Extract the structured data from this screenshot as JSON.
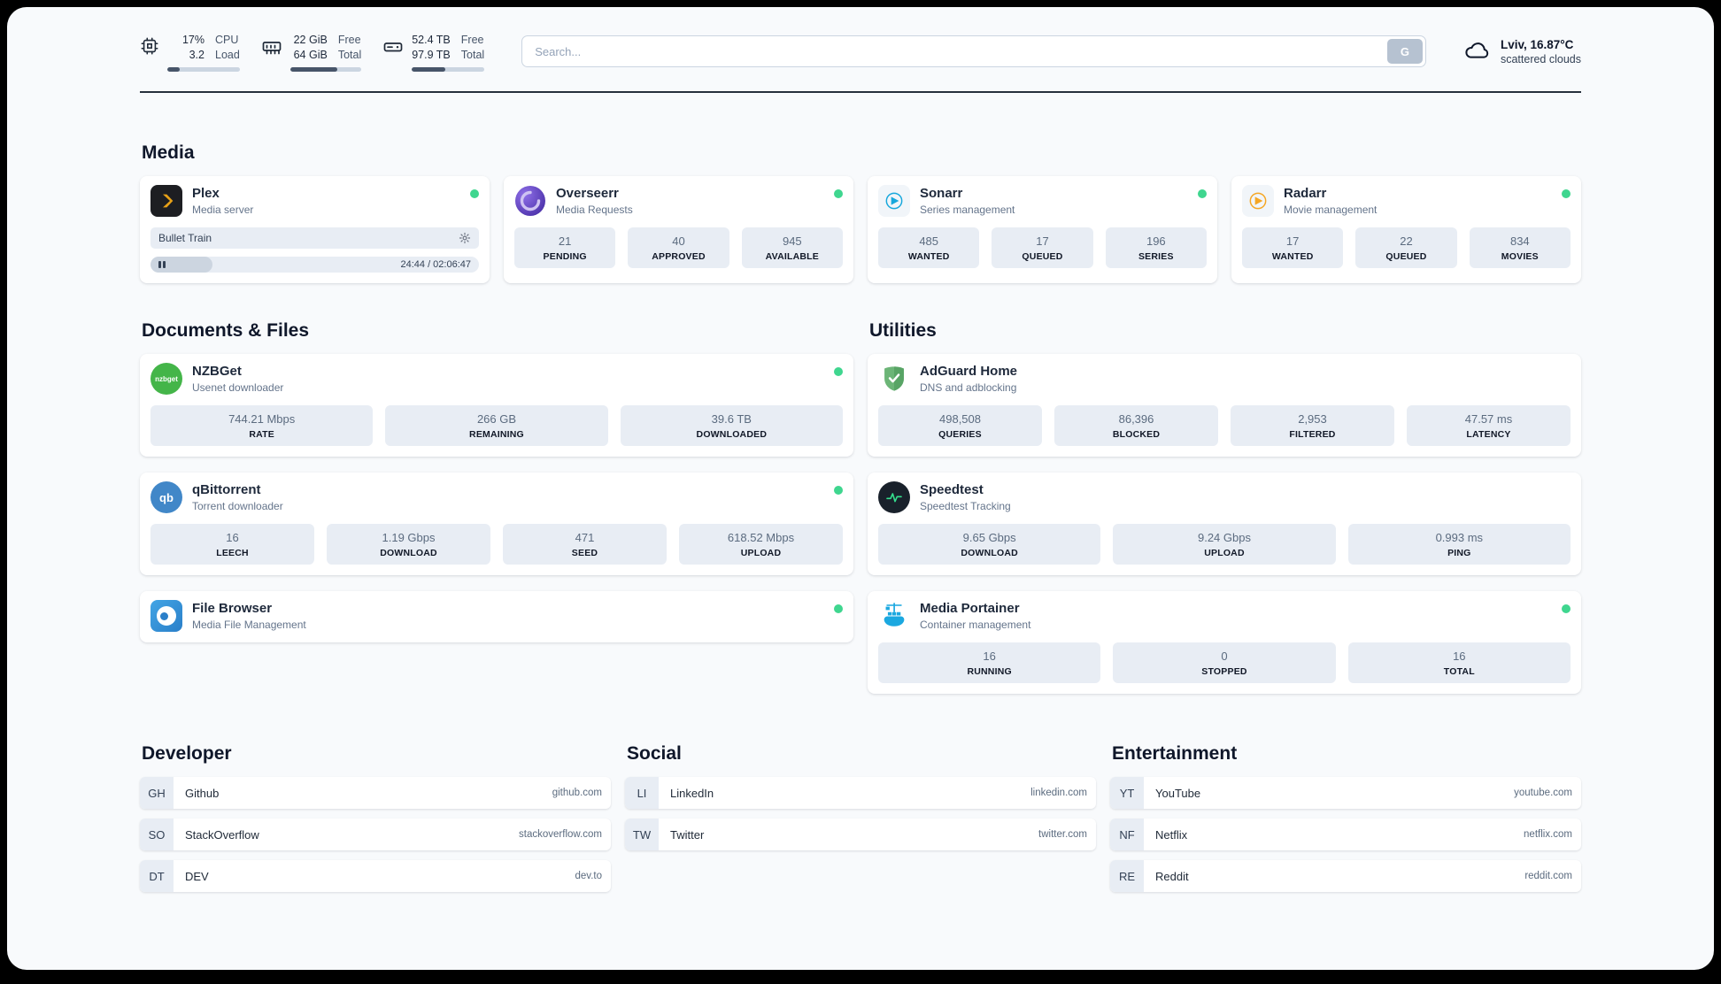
{
  "topbar": {
    "cpu": {
      "value_top": "17%",
      "value_bottom": "3.2",
      "label_top": "CPU",
      "label_bottom": "Load",
      "bar_pct": 17
    },
    "memory": {
      "value_top": "22 GiB",
      "value_bottom": "64 GiB",
      "label_top": "Free",
      "label_bottom": "Total",
      "bar_pct": 66
    },
    "disk": {
      "value_top": "52.4 TB",
      "value_bottom": "97.9 TB",
      "label_top": "Free",
      "label_bottom": "Total",
      "bar_pct": 46
    },
    "search": {
      "placeholder": "Search...",
      "button": "G"
    },
    "weather": {
      "location": "Lviv, 16.87°C",
      "condition": "scattered clouds"
    }
  },
  "media": {
    "title": "Media",
    "plex": {
      "name": "Plex",
      "subtitle": "Media server",
      "now_playing": "Bullet Train",
      "time": "24:44 / 02:06:47",
      "progress_pct": 19
    },
    "overseerr": {
      "name": "Overseerr",
      "subtitle": "Media Requests",
      "stats": [
        {
          "value": "21",
          "label": "PENDING"
        },
        {
          "value": "40",
          "label": "APPROVED"
        },
        {
          "value": "945",
          "label": "AVAILABLE"
        }
      ]
    },
    "sonarr": {
      "name": "Sonarr",
      "subtitle": "Series management",
      "stats": [
        {
          "value": "485",
          "label": "WANTED"
        },
        {
          "value": "17",
          "label": "QUEUED"
        },
        {
          "value": "196",
          "label": "SERIES"
        }
      ]
    },
    "radarr": {
      "name": "Radarr",
      "subtitle": "Movie management",
      "stats": [
        {
          "value": "17",
          "label": "WANTED"
        },
        {
          "value": "22",
          "label": "QUEUED"
        },
        {
          "value": "834",
          "label": "MOVIES"
        }
      ]
    }
  },
  "documents": {
    "title": "Documents & Files",
    "nzbget": {
      "name": "NZBGet",
      "subtitle": "Usenet downloader",
      "icon_text": "nzbget",
      "stats": [
        {
          "value": "744.21 Mbps",
          "label": "RATE"
        },
        {
          "value": "266 GB",
          "label": "REMAINING"
        },
        {
          "value": "39.6 TB",
          "label": "DOWNLOADED"
        }
      ]
    },
    "qbittorrent": {
      "name": "qBittorrent",
      "subtitle": "Torrent downloader",
      "icon_text": "qb",
      "stats": [
        {
          "value": "16",
          "label": "LEECH"
        },
        {
          "value": "1.19 Gbps",
          "label": "DOWNLOAD"
        },
        {
          "value": "471",
          "label": "SEED"
        },
        {
          "value": "618.52 Mbps",
          "label": "UPLOAD"
        }
      ]
    },
    "filebrowser": {
      "name": "File Browser",
      "subtitle": "Media File Management"
    }
  },
  "utilities": {
    "title": "Utilities",
    "adguard": {
      "name": "AdGuard Home",
      "subtitle": "DNS and adblocking",
      "stats": [
        {
          "value": "498,508",
          "label": "QUERIES"
        },
        {
          "value": "86,396",
          "label": "BLOCKED"
        },
        {
          "value": "2,953",
          "label": "FILTERED"
        },
        {
          "value": "47.57 ms",
          "label": "LATENCY"
        }
      ]
    },
    "speedtest": {
      "name": "Speedtest",
      "subtitle": "Speedtest Tracking",
      "stats": [
        {
          "value": "9.65 Gbps",
          "label": "DOWNLOAD"
        },
        {
          "value": "9.24 Gbps",
          "label": "UPLOAD"
        },
        {
          "value": "0.993 ms",
          "label": "PING"
        }
      ]
    },
    "portainer": {
      "name": "Media Portainer",
      "subtitle": "Container management",
      "stats": [
        {
          "value": "16",
          "label": "RUNNING"
        },
        {
          "value": "0",
          "label": "STOPPED"
        },
        {
          "value": "16",
          "label": "TOTAL"
        }
      ]
    }
  },
  "bookmarks": {
    "developer": {
      "title": "Developer",
      "items": [
        {
          "abbr": "GH",
          "name": "Github",
          "url": "github.com"
        },
        {
          "abbr": "SO",
          "name": "StackOverflow",
          "url": "stackoverflow.com"
        },
        {
          "abbr": "DT",
          "name": "DEV",
          "url": "dev.to"
        }
      ]
    },
    "social": {
      "title": "Social",
      "items": [
        {
          "abbr": "LI",
          "name": "LinkedIn",
          "url": "linkedin.com"
        },
        {
          "abbr": "TW",
          "name": "Twitter",
          "url": "twitter.com"
        }
      ]
    },
    "entertainment": {
      "title": "Entertainment",
      "items": [
        {
          "abbr": "YT",
          "name": "YouTube",
          "url": "youtube.com"
        },
        {
          "abbr": "NF",
          "name": "Netflix",
          "url": "netflix.com"
        },
        {
          "abbr": "RE",
          "name": "Reddit",
          "url": "reddit.com"
        }
      ]
    }
  },
  "colors": {
    "status_online": "#3fd68f",
    "plex_accent": "#e8a117",
    "overseerr_accent": "#5a3fb5",
    "sonarr_accent": "#16a7dc",
    "radarr_accent": "#f5a623",
    "nzbget_accent": "#44b549",
    "qbittorrent_accent": "#4187c8",
    "filebrowser_accent": "#2a7fc9",
    "adguard_accent": "#67b279",
    "speedtest_accent": "#35e08e",
    "portainer_accent": "#1ba8e0"
  }
}
